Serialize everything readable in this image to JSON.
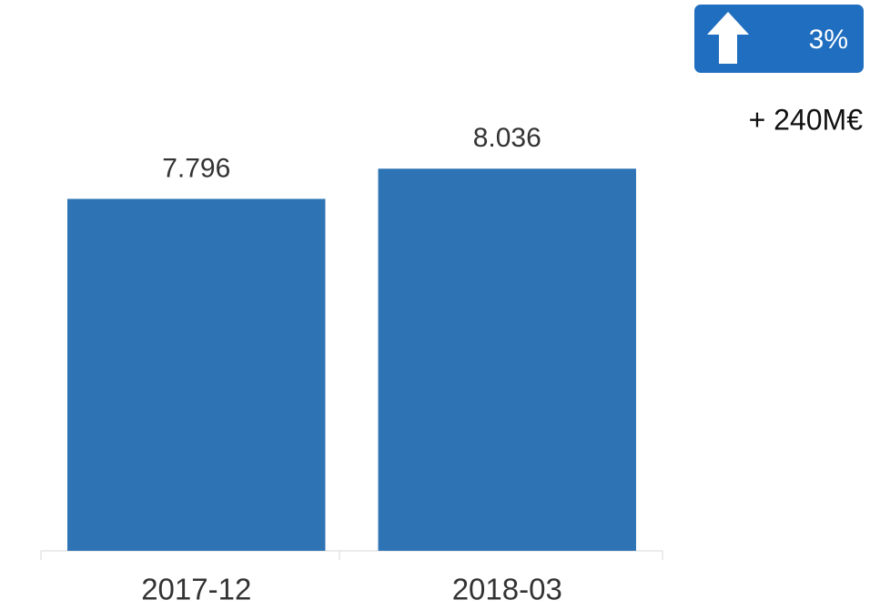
{
  "chart_data": {
    "type": "bar",
    "categories": [
      "2017-12",
      "2018-03"
    ],
    "values": [
      7796,
      8036
    ],
    "value_labels": [
      "7.796",
      "8.036"
    ],
    "color": "#2e74b5",
    "ylim": [
      5000,
      9000
    ],
    "badge": "3%",
    "delta": "+ 240M€"
  }
}
